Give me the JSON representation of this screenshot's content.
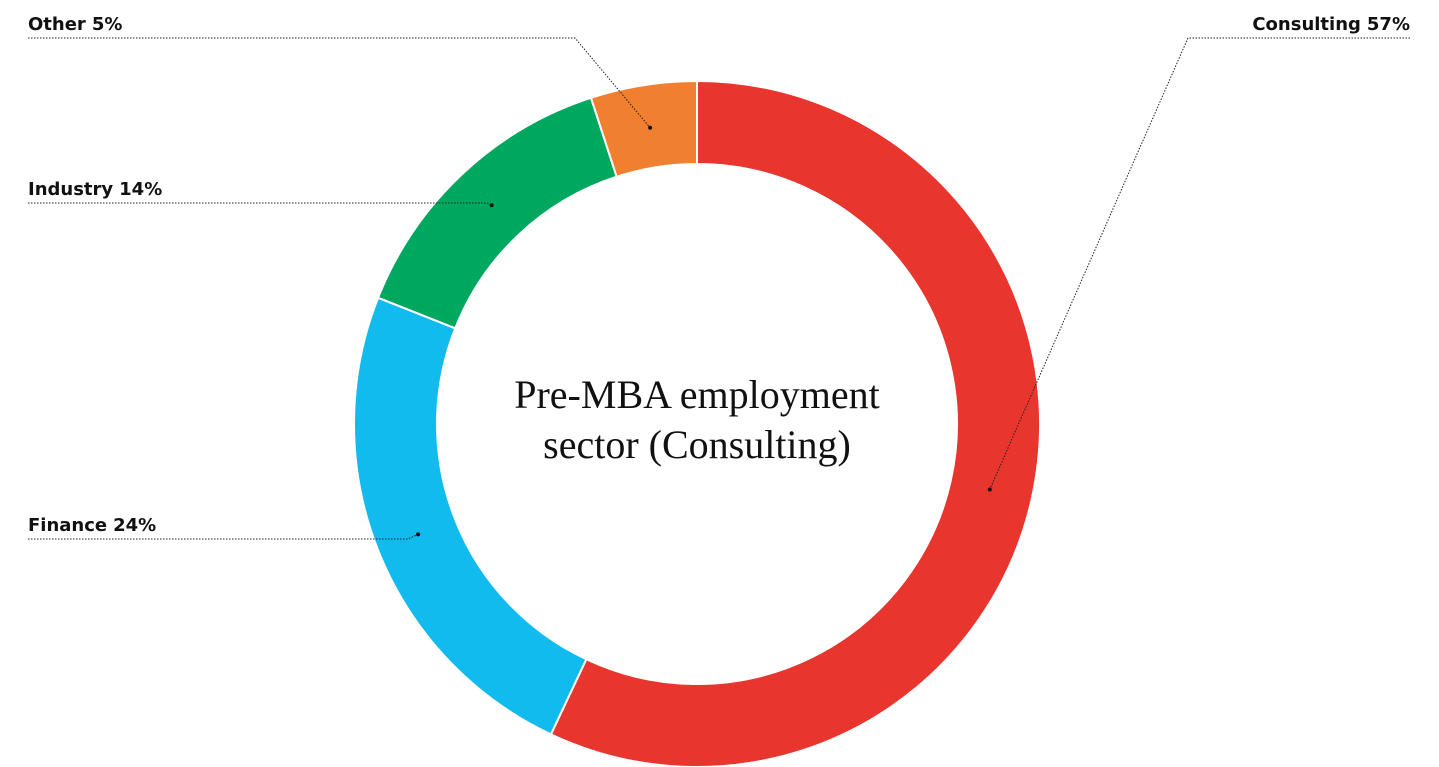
{
  "chart_data": {
    "type": "donut",
    "title": "Pre-MBA employment sector (Consulting)",
    "categories": [
      "Consulting",
      "Finance",
      "Industry",
      "Other"
    ],
    "values": [
      57,
      24,
      14,
      5
    ],
    "value_labels": [
      "57%",
      "24%",
      "14%",
      "5%"
    ],
    "colors": [
      "#e8352e",
      "#12bbee",
      "#00a85f",
      "#f07f2f"
    ]
  }
}
